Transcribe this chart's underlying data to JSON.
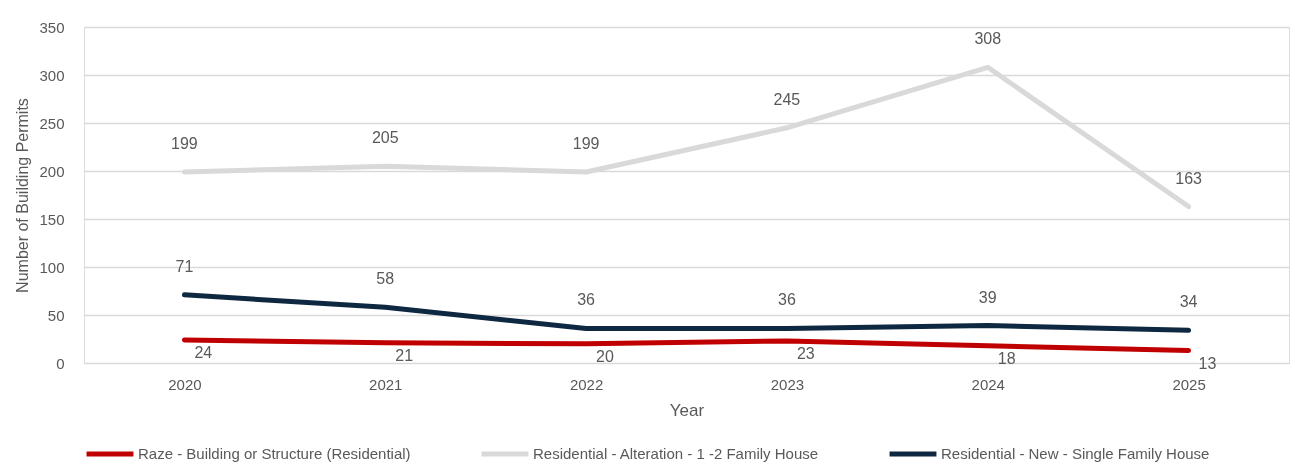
{
  "chart_data": {
    "type": "line",
    "xlabel": "Year",
    "ylabel": "Number of Building Permits",
    "categories": [
      "2020",
      "2021",
      "2022",
      "2023",
      "2024",
      "2025"
    ],
    "series": [
      {
        "name": "Raze - Building or Structure (Residential)",
        "color": "#c00000",
        "values": [
          24,
          21,
          20,
          23,
          18,
          13
        ]
      },
      {
        "name": "Residential - Alteration - 1 -2 Family House",
        "color": "#d9d9d9",
        "values": [
          199,
          205,
          199,
          245,
          308,
          163
        ]
      },
      {
        "name": "Residential - New - Single Family House",
        "color": "#0e2841",
        "values": [
          71,
          58,
          36,
          36,
          39,
          34
        ]
      }
    ],
    "ylim": [
      0,
      350
    ],
    "yticks": [
      0,
      50,
      100,
      150,
      200,
      250,
      300,
      350
    ],
    "grid": "y",
    "legend": "bottom",
    "data_labels": true,
    "marker": "none",
    "line_style": "solid"
  }
}
